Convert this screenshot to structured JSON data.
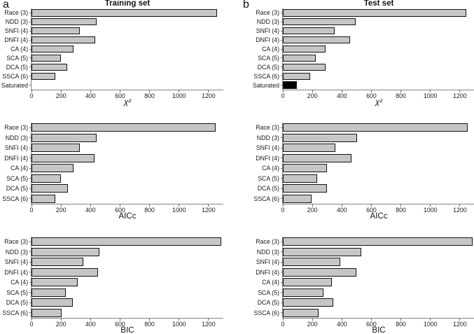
{
  "figure_type": "bar-chart-grid",
  "panel_labels": [
    "a",
    "b"
  ],
  "style": {
    "bar_fill": "#c6c6c6",
    "bar_border": "#141414",
    "highlight_fill": "#000000",
    "axis_color": "#848484",
    "text_color": "#1a1a1a"
  },
  "chart_data": [
    {
      "type": "bar",
      "orientation": "horizontal",
      "panel": "a",
      "title": "Training set",
      "xlabel": "χ²",
      "xlabel_italic": true,
      "categories": [
        "Race (3)",
        "NDD (3)",
        "SNFI (4)",
        "DNFI (4)",
        "CA (4)",
        "SCA (5)",
        "DCA (5)",
        "SSCA (6)",
        "Saturated"
      ],
      "values": [
        1255,
        440,
        325,
        430,
        283,
        197,
        244,
        161,
        0
      ],
      "xlim": [
        0,
        1300
      ],
      "xticks": [
        0,
        200,
        400,
        600,
        800,
        1000,
        1200
      ],
      "grid": false
    },
    {
      "type": "bar",
      "orientation": "horizontal",
      "panel": "b",
      "title": "Test set",
      "xlabel": "χ²",
      "xlabel_italic": true,
      "categories": [
        "Race (3)",
        "NDD (3)",
        "SNFI (4)",
        "DNFI (4)",
        "CA (4)",
        "SCA (5)",
        "DCA (5)",
        "SSCA (6)",
        "Saturated"
      ],
      "values": [
        1245,
        495,
        350,
        455,
        291,
        224,
        291,
        185,
        94
      ],
      "bar_overrides": [
        {
          "index": 8,
          "fill": "#000000"
        }
      ],
      "xlim": [
        0,
        1300
      ],
      "xticks": [
        0,
        200,
        400,
        600,
        800,
        1000,
        1200
      ],
      "grid": false
    },
    {
      "type": "bar",
      "orientation": "horizontal",
      "panel": "a",
      "title": "",
      "xlabel": "AICc",
      "xlabel_italic": false,
      "categories": [
        "Race (3)",
        "NDD (3)",
        "SNFI (4)",
        "DNFI (4)",
        "CA (4)",
        "SCA (5)",
        "DCA (5)",
        "SSCA (6)"
      ],
      "values": [
        1250,
        441,
        327,
        427,
        285,
        199,
        247,
        163
      ],
      "xlim": [
        0,
        1300
      ],
      "xticks": [
        0,
        200,
        400,
        600,
        800,
        1000,
        1200
      ],
      "grid": false
    },
    {
      "type": "bar",
      "orientation": "horizontal",
      "panel": "b",
      "title": "",
      "xlabel": "AICc",
      "xlabel_italic": false,
      "categories": [
        "Race (3)",
        "NDD (3)",
        "SNFI (4)",
        "DNFI (4)",
        "CA (4)",
        "SCA (5)",
        "DCA (5)",
        "SSCA (6)"
      ],
      "values": [
        1252,
        503,
        358,
        466,
        299,
        233,
        301,
        196
      ],
      "xlim": [
        0,
        1300
      ],
      "xticks": [
        0,
        200,
        400,
        600,
        800,
        1000,
        1200
      ],
      "grid": false
    },
    {
      "type": "bar",
      "orientation": "horizontal",
      "panel": "a",
      "title": "",
      "xlabel": "BIC",
      "xlabel_italic": false,
      "categories": [
        "Race (3)",
        "NDD (3)",
        "SNFI (4)",
        "DNFI (4)",
        "CA (4)",
        "SCA (5)",
        "DCA (5)",
        "SSCA (6)"
      ],
      "values": [
        1287,
        458,
        352,
        453,
        312,
        231,
        281,
        203
      ],
      "xlim": [
        0,
        1300
      ],
      "xticks": [
        0,
        200,
        400,
        600,
        800,
        1000,
        1200
      ],
      "grid": false
    },
    {
      "type": "bar",
      "orientation": "horizontal",
      "panel": "b",
      "title": "",
      "xlabel": "BIC",
      "xlabel_italic": false,
      "categories": [
        "Race (3)",
        "NDD (3)",
        "SNFI (4)",
        "DNFI (4)",
        "CA (4)",
        "SCA (5)",
        "DCA (5)",
        "SSCA (6)"
      ],
      "values": [
        1287,
        531,
        390,
        497,
        331,
        274,
        342,
        242
      ],
      "xlim": [
        0,
        1300
      ],
      "xticks": [
        0,
        200,
        400,
        600,
        800,
        1000,
        1200
      ],
      "grid": false
    }
  ]
}
